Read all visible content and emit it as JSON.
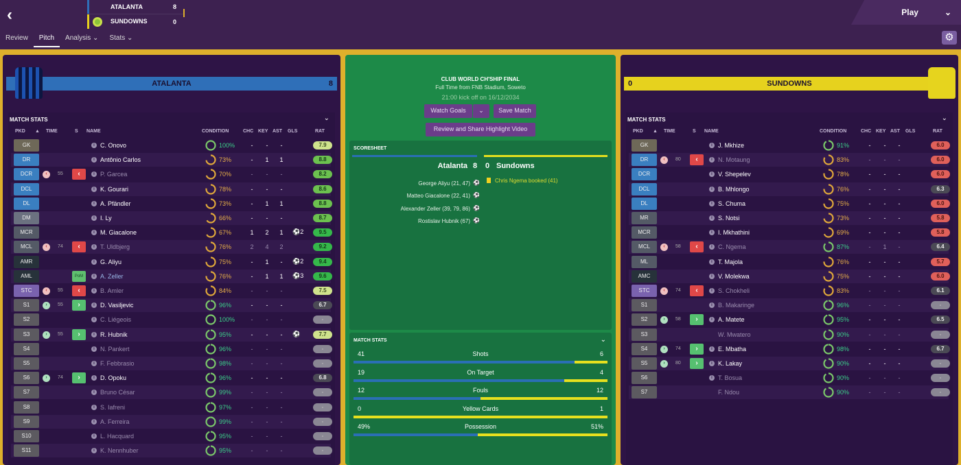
{
  "nav": {
    "back": "‹",
    "tabs": [
      "Review",
      "Pitch",
      "Analysis ⌄",
      "Stats ⌄"
    ],
    "play": "Play",
    "play_chev": "⌄",
    "gear": "⚙"
  },
  "scoreboard": {
    "home": {
      "name": "ATALANTA",
      "score": "8",
      "color": "#2f6fb8"
    },
    "away": {
      "name": "SUNDOWNS",
      "score": "0",
      "color": "#e6d21e"
    }
  },
  "center": {
    "competition": "CLUB WORLD CH'SHIP FINAL",
    "venue": "Full Time from FNB Stadium, Soweto",
    "kickoff": "21:00 kick off on 16/12/2034",
    "watch_goals": "Watch Goals",
    "watch_chev": "⌄",
    "save_match": "Save Match",
    "review_video": "Review and Share Highlight Video",
    "scoresheet": {
      "title": "SCORESHEET",
      "home": "Atalanta",
      "home_score": "8",
      "away_score": "0",
      "away": "Sundowns",
      "goals": [
        "George Aliyu (21, 47)",
        "Matteo Giacalone (22, 41)",
        "Alexander Zeller (39, 79, 86)",
        "Rostislav Hubnik (67)"
      ],
      "bookings": [
        "Chris Ngema booked (41)"
      ]
    },
    "match_stats": {
      "title": "MATCH STATS",
      "stats": [
        {
          "label": "Shots",
          "home": "41",
          "away": "6",
          "home_frac": 0.87
        },
        {
          "label": "On Target",
          "home": "19",
          "away": "4",
          "home_frac": 0.83
        },
        {
          "label": "Fouls",
          "home": "12",
          "away": "12",
          "home_frac": 0.5
        },
        {
          "label": "Yellow Cards",
          "home": "0",
          "away": "1",
          "home_frac": 0
        },
        {
          "label": "Possession",
          "home": "49%",
          "away": "51%",
          "home_frac": 0.49
        }
      ]
    }
  },
  "columns": [
    "PKD",
    "▲",
    "TIME",
    "S",
    "NAME",
    "CONDITION",
    "CHC",
    "KEY",
    "AST",
    "GLS",
    "RAT"
  ],
  "teams": [
    {
      "name": "ATALANTA",
      "score": "8",
      "bar_color": "#2f6fb8",
      "section": "MATCH STATS",
      "rows": [
        [
          "GK",
          "",
          "",
          "",
          "C. Onovo",
          0,
          100,
          "-",
          "-",
          "-",
          "",
          "7.9"
        ],
        [
          "DR",
          "",
          "",
          "",
          "Antônio Carlos",
          0,
          73,
          "-",
          "1",
          "1",
          "",
          "8.8"
        ],
        [
          "DCR",
          "out",
          "55",
          "out",
          "P. Garcea",
          1,
          70,
          "-",
          "-",
          "-",
          "",
          "8.2"
        ],
        [
          "DCL",
          "",
          "",
          "",
          "K. Gourari",
          0,
          78,
          "-",
          "-",
          "-",
          "",
          "8.6"
        ],
        [
          "DL",
          "",
          "",
          "",
          "A. Pfändler",
          0,
          73,
          "-",
          "1",
          "1",
          "",
          "8.8"
        ],
        [
          "DM",
          "",
          "",
          "",
          "I. Ly",
          0,
          66,
          "-",
          "-",
          "-",
          "",
          "8.7"
        ],
        [
          "MCR",
          "",
          "",
          "",
          "M. Giacalone",
          0,
          67,
          "1",
          "2",
          "1",
          "⚽2",
          "9.5"
        ],
        [
          "MCL",
          "out",
          "74",
          "out",
          "T. Uldbjerg",
          1,
          76,
          "2",
          "4",
          "2",
          "",
          "9.2"
        ],
        [
          "AMR",
          "",
          "",
          "",
          "G. Aliyu",
          0,
          75,
          "-",
          "1",
          "-",
          "⚽2",
          "9.4"
        ],
        [
          "AML",
          "",
          "",
          "PoM",
          "A. Zeller",
          2,
          76,
          "-",
          "1",
          "1",
          "⚽3",
          "9.6"
        ],
        [
          "STC",
          "out",
          "55",
          "out",
          "B. Amler",
          1,
          84,
          "-",
          "-",
          "-",
          "",
          "7.5"
        ],
        [
          "S1",
          "in",
          "55",
          "in",
          "D. Vasiljevic",
          0,
          96,
          "-",
          "-",
          "-",
          "",
          "6.7"
        ],
        [
          "S2",
          "",
          "",
          "",
          "C. Liégeois",
          1,
          100,
          "-",
          "-",
          "-",
          "",
          "-"
        ],
        [
          "S3",
          "in",
          "55",
          "in",
          "R. Hubnik",
          0,
          95,
          "-",
          "-",
          "-",
          "⚽",
          "7.7"
        ],
        [
          "S4",
          "",
          "",
          "",
          "N. Pankert",
          1,
          96,
          "-",
          "-",
          "-",
          "",
          "-"
        ],
        [
          "S5",
          "",
          "",
          "",
          "F. Febbrasio",
          1,
          98,
          "-",
          "-",
          "-",
          "",
          "-"
        ],
        [
          "S6",
          "in",
          "74",
          "in",
          "D. Opoku",
          0,
          96,
          "-",
          "-",
          "-",
          "",
          "6.8"
        ],
        [
          "S7",
          "",
          "",
          "",
          "Bruno César",
          1,
          99,
          "-",
          "-",
          "-",
          "",
          "-"
        ],
        [
          "S8",
          "",
          "",
          "",
          "S. Iafreni",
          1,
          97,
          "-",
          "-",
          "-",
          "",
          "-"
        ],
        [
          "S9",
          "",
          "",
          "",
          "A. Ferreira",
          1,
          99,
          "-",
          "-",
          "-",
          "",
          "-"
        ],
        [
          "S10",
          "",
          "",
          "",
          "L. Hacquard",
          1,
          95,
          "-",
          "-",
          "-",
          "",
          "-"
        ],
        [
          "S11",
          "",
          "",
          "",
          "K. Nennhuber",
          1,
          95,
          "-",
          "-",
          "-",
          "",
          "-"
        ]
      ]
    },
    {
      "name": "SUNDOWNS",
      "score": "0",
      "bar_color": "#e6d21e",
      "section": "MATCH STATS",
      "rows": [
        [
          "GK",
          "",
          "",
          "",
          "J. Mkhize",
          0,
          91,
          "-",
          "-",
          "-",
          "",
          "6.0"
        ],
        [
          "DR",
          "out",
          "80",
          "out",
          "N. Motaung",
          1,
          83,
          "-",
          "-",
          "-",
          "",
          "6.0"
        ],
        [
          "DCR",
          "",
          "",
          "",
          "V. Shepelev",
          0,
          78,
          "-",
          "-",
          "-",
          "",
          "6.0"
        ],
        [
          "DCL",
          "",
          "",
          "",
          "B. Mhlongo",
          0,
          76,
          "-",
          "-",
          "-",
          "",
          "6.3"
        ],
        [
          "DL",
          "",
          "",
          "",
          "S. Chuma",
          0,
          75,
          "-",
          "-",
          "-",
          "",
          "6.0"
        ],
        [
          "MR",
          "",
          "",
          "",
          "S. Notsi",
          0,
          73,
          "-",
          "-",
          "-",
          "",
          "5.8"
        ],
        [
          "MCR",
          "",
          "",
          "",
          "I. Mkhathini",
          0,
          69,
          "-",
          "-",
          "-",
          "",
          "5.8"
        ],
        [
          "MCL",
          "out",
          "58",
          "out",
          "C. Ngema",
          1,
          87,
          "-",
          "1",
          "-",
          "",
          "6.4"
        ],
        [
          "ML",
          "",
          "",
          "",
          "T. Majola",
          0,
          76,
          "-",
          "-",
          "-",
          "",
          "5.7"
        ],
        [
          "AMC",
          "",
          "",
          "",
          "V. Molekwa",
          0,
          75,
          "-",
          "-",
          "-",
          "",
          "6.0"
        ],
        [
          "STC",
          "out",
          "74",
          "out",
          "S. Chokheli",
          1,
          83,
          "-",
          "-",
          "-",
          "",
          "6.1"
        ],
        [
          "S1",
          "",
          "",
          "",
          "B. Makaringe",
          1,
          96,
          "-",
          "-",
          "-",
          "",
          "-"
        ],
        [
          "S2",
          "in",
          "58",
          "in",
          "A. Matete",
          0,
          95,
          "-",
          "-",
          "-",
          "",
          "6.5"
        ],
        [
          "S3",
          "",
          "",
          "",
          "W. Mwatero",
          3,
          90,
          "-",
          "-",
          "-",
          "",
          "-"
        ],
        [
          "S4",
          "in",
          "74",
          "in",
          "E. Mbatha",
          0,
          98,
          "-",
          "-",
          "-",
          "",
          "6.7"
        ],
        [
          "S5",
          "in",
          "80",
          "in",
          "K. Lakay",
          0,
          90,
          "-",
          "-",
          "-",
          "",
          "-"
        ],
        [
          "S6",
          "",
          "",
          "",
          "T. Bosua",
          1,
          90,
          "-",
          "-",
          "-",
          "",
          "-"
        ],
        [
          "S7",
          "",
          "",
          "",
          "F. Ndou",
          3,
          90,
          "-",
          "-",
          "-",
          "",
          "-"
        ]
      ]
    }
  ],
  "position_colors": {
    "GK": "#6e6858",
    "DR": "#3a7fc0",
    "DCR": "#3a7fc0",
    "DCL": "#3a7fc0",
    "DL": "#3a7fc0",
    "DM": "#6b7180",
    "MR": "#545a66",
    "MCR": "#545a66",
    "MCL": "#545a66",
    "ML": "#545a66",
    "AMR": "#27323a",
    "AML": "#27323a",
    "AMC": "#27323a",
    "STC": "#7a62ae",
    "SUB": "#5c5a60"
  },
  "icons": {
    "sub_out": "‹",
    "sub_in": "›",
    "info": "i",
    "ball": "⚽"
  }
}
